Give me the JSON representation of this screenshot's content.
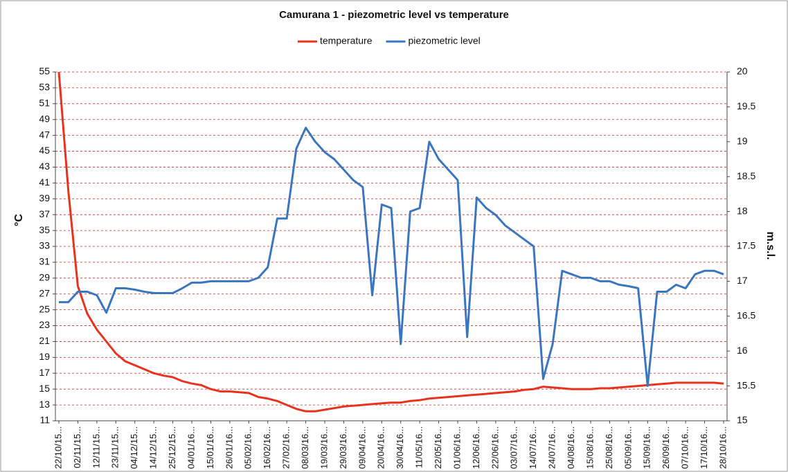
{
  "chart_data": {
    "type": "line",
    "title": "Camurana 1 - piezometric level vs temperature",
    "y_label": "°C",
    "y2_label": "m.s.l.",
    "categories": [
      "22/10/15...",
      null,
      "02/11/15...",
      null,
      "12/11/15...",
      null,
      "23/11/15...",
      null,
      "04/12/15...",
      null,
      "14/12/15...",
      null,
      "25/12/15...",
      null,
      "04/01/16...",
      null,
      "15/01/16...",
      null,
      "26/01/16...",
      null,
      "05/02/16...",
      null,
      "16/02/16...",
      null,
      "27/02/16...",
      null,
      "08/03/16...",
      null,
      "19/03/16...",
      null,
      "29/03/16...",
      null,
      "09/04/16...",
      null,
      "20/04/16...",
      null,
      "30/04/16...",
      null,
      "11/05/16...",
      null,
      "22/05/16...",
      null,
      "01/06/16...",
      null,
      "12/06/16...",
      null,
      "22/06/16...",
      null,
      "03/07/16...",
      null,
      "14/07/16...",
      null,
      "24/07/16...",
      null,
      "04/08/16...",
      null,
      "15/08/16...",
      null,
      "25/08/16...",
      null,
      "05/09/16...",
      null,
      "15/09/16...",
      null,
      "26/09/16...",
      null,
      "07/10/16...",
      null,
      "17/10/16...",
      null,
      "28/10/16..."
    ],
    "series": [
      {
        "name": "temperature",
        "color": "#e8321e",
        "axis": "y",
        "values": [
          55,
          40,
          28,
          24.5,
          22.5,
          21,
          19.5,
          18.5,
          18,
          17.5,
          17,
          16.7,
          16.5,
          16,
          15.7,
          15.5,
          15,
          14.7,
          14.7,
          14.6,
          14.5,
          14,
          13.8,
          13.5,
          13,
          12.5,
          12.2,
          12.2,
          12.4,
          12.6,
          12.8,
          12.9,
          13,
          13.1,
          13.2,
          13.3,
          13.3,
          13.5,
          13.6,
          13.8,
          13.9,
          14,
          14.1,
          14.2,
          14.3,
          14.4,
          14.5,
          14.6,
          14.7,
          14.9,
          15,
          15.3,
          15.2,
          15.1,
          15,
          15,
          15,
          15.1,
          15.1,
          15.2,
          15.3,
          15.4,
          15.5,
          15.6,
          15.7,
          15.8,
          15.8,
          15.8,
          15.8,
          15.8,
          15.7
        ]
      },
      {
        "name": "piezometric level",
        "color": "#3a75c0",
        "axis": "y2",
        "values": [
          16.7,
          16.7,
          16.85,
          16.85,
          16.8,
          16.55,
          16.9,
          16.9,
          16.88,
          16.85,
          16.83,
          16.83,
          16.83,
          16.9,
          16.98,
          16.98,
          17,
          17,
          17,
          17,
          17,
          17.05,
          17.2,
          17.9,
          17.9,
          18.9,
          19.2,
          19.0,
          18.85,
          18.75,
          18.6,
          18.45,
          18.35,
          16.8,
          18.1,
          18.05,
          16.1,
          18.0,
          18.05,
          19.0,
          18.75,
          18.6,
          18.45,
          16.2,
          18.2,
          18.05,
          17.95,
          17.8,
          17.7,
          17.6,
          17.5,
          15.6,
          16.1,
          17.15,
          17.1,
          17.05,
          17.05,
          17.0,
          17.0,
          16.95,
          16.93,
          16.9,
          15.5,
          16.85,
          16.85,
          16.95,
          16.9,
          17.1,
          17.15,
          17.15,
          17.1
        ]
      }
    ],
    "ylim": [
      11,
      55
    ],
    "yticks": [
      11,
      13,
      15,
      17,
      19,
      21,
      23,
      25,
      27,
      29,
      31,
      33,
      35,
      37,
      39,
      41,
      43,
      45,
      47,
      49,
      51,
      53,
      55
    ],
    "y2lim": [
      15,
      20
    ],
    "y2ticks": [
      15,
      15.5,
      16,
      16.5,
      17,
      17.5,
      18,
      18.5,
      19,
      19.5,
      20
    ],
    "grid": true,
    "legend": "top"
  }
}
